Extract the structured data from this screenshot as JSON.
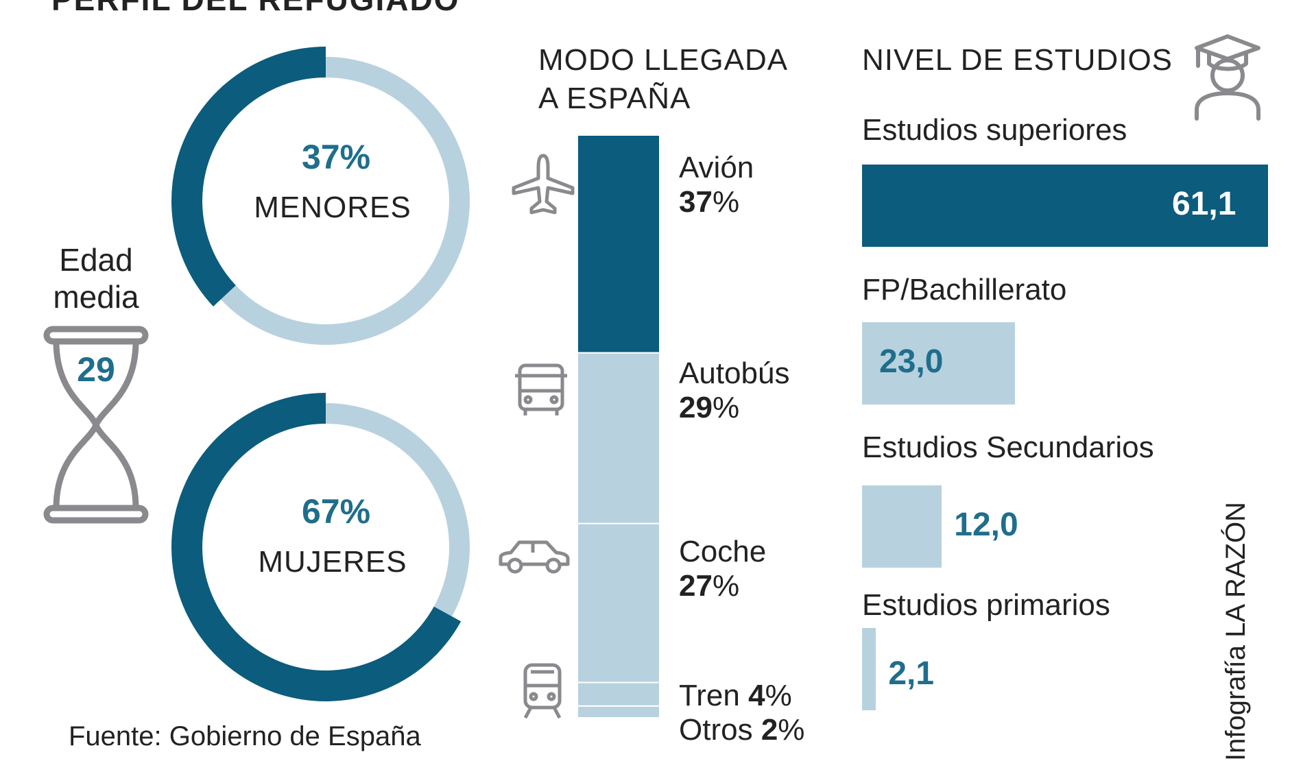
{
  "title": "PERFIL DEL REFUGIADO",
  "colors": {
    "dark": "#0b5c7d",
    "light": "#b8d1df",
    "accent_text": "#1f6e8c",
    "icon_gray": "#8a8a8e"
  },
  "age": {
    "label_line1": "Edad",
    "label_line2": "media",
    "value": "29",
    "icon": "hourglass-icon"
  },
  "column_headers": {
    "arrival_line1": "MODO LLEGADA",
    "arrival_line2": "A ESPAÑA",
    "education": "NIVEL DE ESTUDIOS",
    "education_icon": "graduate-icon"
  },
  "source": "Fuente: Gobierno de España",
  "credit": "Infografía LA RAZÓN",
  "chart_data": [
    {
      "type": "pie",
      "variant": "donut",
      "label": "MENORES",
      "value_text": "37%",
      "values": [
        37,
        63
      ]
    },
    {
      "type": "pie",
      "variant": "donut",
      "label": "MUJERES",
      "value_text": "67%",
      "values": [
        67,
        33
      ]
    },
    {
      "type": "bar",
      "variant": "stacked-100",
      "title": "MODO LLEGADA A ESPAÑA",
      "categories": [
        "Avión",
        "Autobús",
        "Coche",
        "Tren",
        "Otros"
      ],
      "values": [
        37,
        29,
        27,
        4,
        2
      ],
      "value_labels": [
        "37",
        "29",
        "27",
        "4",
        "2"
      ],
      "unit": "%",
      "icons": [
        "plane-icon",
        "bus-icon",
        "car-icon",
        "train-icon",
        ""
      ]
    },
    {
      "type": "bar",
      "orientation": "horizontal",
      "title": "NIVEL DE ESTUDIOS",
      "categories": [
        "Estudios superiores",
        "FP/Bachillerato",
        "Estudios Secundarios",
        "Estudios primarios"
      ],
      "values": [
        61.1,
        23.0,
        12.0,
        2.1
      ],
      "value_labels": [
        "61,1",
        "23,0",
        "12,0",
        "2,1"
      ]
    }
  ]
}
